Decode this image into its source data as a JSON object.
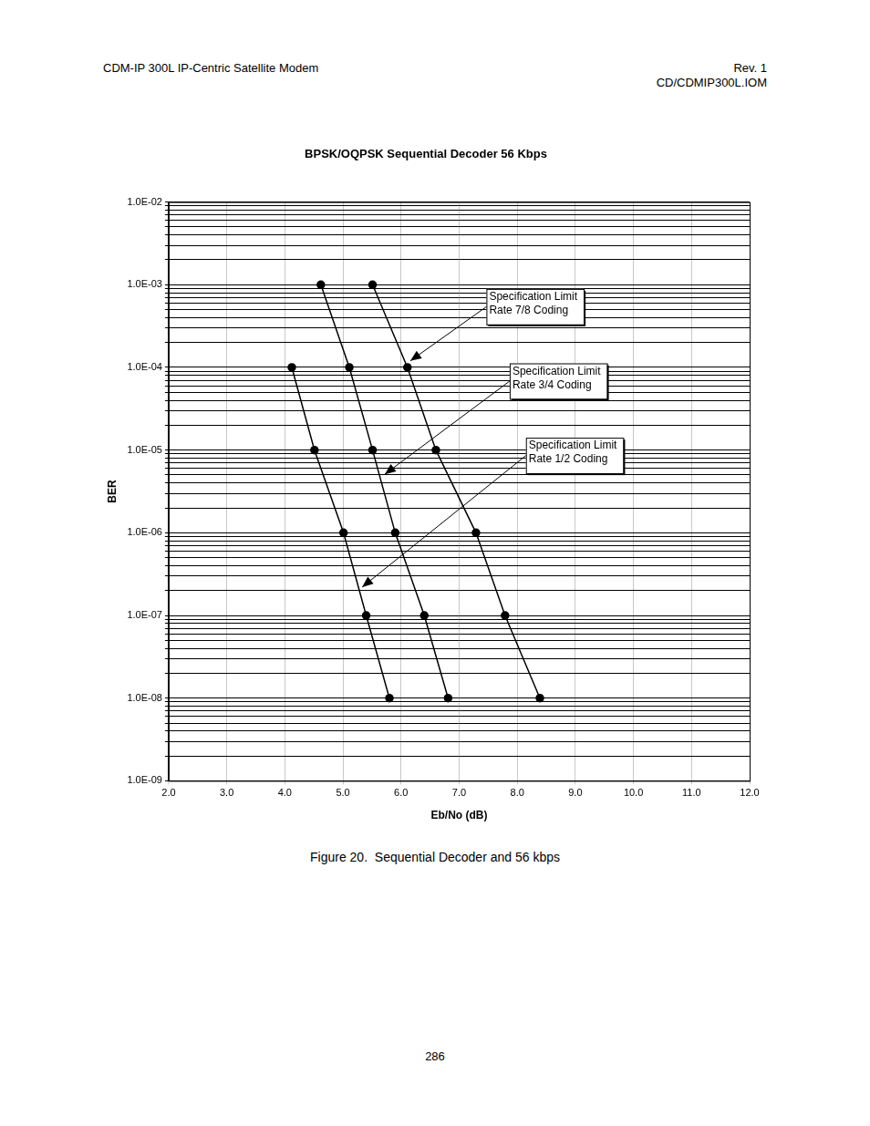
{
  "header": {
    "left": "CDM-IP 300L IP-Centric Satellite Modem",
    "right": [
      "Rev. 1",
      "CD/CDMIP300L.IOM"
    ]
  },
  "chart_data": {
    "type": "line",
    "title": "BPSK/OQPSK Sequential Decoder 56 Kbps",
    "x_label": "Eb/No (dB)",
    "y_label": "BER",
    "log": "y",
    "grid": true,
    "xlim": [
      2,
      12
    ],
    "xticks": [
      {
        "value": 2,
        "label": "2.0"
      },
      {
        "value": 3,
        "label": "3.0"
      },
      {
        "value": 4,
        "label": "4.0"
      },
      {
        "value": 5,
        "label": "5.0"
      },
      {
        "value": 6,
        "label": "6.0"
      },
      {
        "value": 7,
        "label": "7.0"
      },
      {
        "value": 8,
        "label": "8.0"
      },
      {
        "value": 9,
        "label": "9.0"
      },
      {
        "value": 10,
        "label": "10.0"
      },
      {
        "value": 11,
        "label": "11.0"
      },
      {
        "value": 12,
        "label": "12.0"
      }
    ],
    "ylim": [
      1e-09,
      0.01
    ],
    "yticks": [
      {
        "value": 1e-09,
        "label": "1.0E-09"
      },
      {
        "value": 1e-08,
        "label": "1.0E-08"
      },
      {
        "value": 1e-07,
        "label": "1.0E-07"
      },
      {
        "value": 1e-06,
        "label": "1.0E-06"
      },
      {
        "value": 1e-05,
        "label": "1.0E-05"
      },
      {
        "value": 0.0001,
        "label": "1.0E-04"
      },
      {
        "value": 0.001,
        "label": "1.0E-03"
      },
      {
        "value": 0.01,
        "label": "1.0E-02"
      }
    ],
    "series": [
      {
        "color": "#000000",
        "marker": "circle",
        "line_style": "solid",
        "x": [
          4.12,
          4.51,
          5.01,
          5.4,
          5.8
        ],
        "values": [
          0.0001,
          1e-05,
          1e-06,
          1e-07,
          1e-08
        ]
      },
      {
        "color": "#000000",
        "marker": "circle",
        "line_style": "solid",
        "x": [
          4.62,
          5.11,
          5.51,
          5.9,
          6.4,
          6.81
        ],
        "values": [
          0.001,
          0.0001,
          1e-05,
          1e-06,
          1e-07,
          1e-08
        ]
      },
      {
        "color": "#000000",
        "marker": "circle",
        "line_style": "solid",
        "x": [
          5.51,
          6.11,
          6.6,
          7.29,
          7.79,
          8.39
        ],
        "values": [
          0.001,
          0.0001,
          1e-05,
          1e-06,
          1e-07,
          1e-08
        ]
      }
    ],
    "annotations": [
      {
        "text": [
          "Specification Limit",
          "Rate 7/8 Coding"
        ],
        "x": 6.16,
        "y": 0.00012,
        "text_x": 7.47,
        "text_y": 0.00089
      },
      {
        "text": [
          "Specification Limit",
          "Rate 3/4 Coding"
        ],
        "x": 5.72,
        "y": 5.1e-06,
        "text_x": 7.87,
        "text_y": 0.000112
      },
      {
        "text": [
          "Specification Limit",
          "Rate 1/2 Coding"
        ],
        "x": 5.33,
        "y": 2.2e-07,
        "text_x": 8.15,
        "text_y": 1.41e-05
      }
    ]
  },
  "caption": "Figure 20.  Sequential Decoder and 56 kbps",
  "page_number": "286"
}
